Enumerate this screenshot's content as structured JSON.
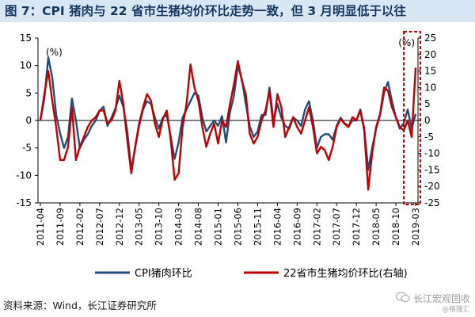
{
  "title": "图 7：CPI 猪肉与 22 省市生猪均价环比走势一致，但 3 月明显低于以往",
  "source": "资料来源：Wind，长江证券研究所",
  "watermark": {
    "line1": "长江宏观固收",
    "line2": "@格隆汇"
  },
  "colors": {
    "cpi": "#1f4e79",
    "hog": "#c00000",
    "highlight": "#c00000",
    "title_bg": "#d9e7f4",
    "title_text": "#17375e"
  },
  "chart_data": {
    "type": "line",
    "x": [
      "2011-04",
      "2011-05",
      "2011-06",
      "2011-07",
      "2011-08",
      "2011-09",
      "2011-10",
      "2011-11",
      "2011-12",
      "2012-01",
      "2012-02",
      "2012-03",
      "2012-04",
      "2012-05",
      "2012-06",
      "2012-07",
      "2012-08",
      "2012-09",
      "2012-10",
      "2012-11",
      "2012-12",
      "2013-01",
      "2013-02",
      "2013-03",
      "2013-04",
      "2013-05",
      "2013-06",
      "2013-07",
      "2013-08",
      "2013-09",
      "2013-10",
      "2013-11",
      "2013-12",
      "2014-01",
      "2014-02",
      "2014-03",
      "2014-04",
      "2014-05",
      "2014-06",
      "2014-07",
      "2014-08",
      "2014-09",
      "2014-10",
      "2014-11",
      "2014-12",
      "2015-01",
      "2015-02",
      "2015-03",
      "2015-04",
      "2015-05",
      "2015-06",
      "2015-07",
      "2015-08",
      "2015-09",
      "2015-10",
      "2015-11",
      "2015-12",
      "2016-01",
      "2016-02",
      "2016-03",
      "2016-04",
      "2016-05",
      "2016-06",
      "2016-07",
      "2016-08",
      "2016-09",
      "2016-10",
      "2016-11",
      "2016-12",
      "2017-01",
      "2017-02",
      "2017-03",
      "2017-04",
      "2017-05",
      "2017-06",
      "2017-07",
      "2017-08",
      "2017-09",
      "2017-10",
      "2017-11",
      "2017-12",
      "2018-01",
      "2018-02",
      "2018-03",
      "2018-04",
      "2018-05",
      "2018-06",
      "2018-07",
      "2018-08",
      "2018-09",
      "2018-10",
      "2018-11",
      "2018-12",
      "2019-01",
      "2019-02",
      "2019-03"
    ],
    "x_tick_labels": [
      "2011-04",
      "2011-09",
      "2012-02",
      "2012-07",
      "2012-12",
      "2013-05",
      "2013-10",
      "2014-03",
      "2014-08",
      "2015-01",
      "2015-06",
      "2015-11",
      "2016-04",
      "2016-09",
      "2017-02",
      "2017-07",
      "2017-12",
      "2018-05",
      "2018-10",
      "2019-03"
    ],
    "series": [
      {
        "name": "CPI猪肉环比",
        "axis": "left",
        "values": [
          0.0,
          4.0,
          11.5,
          7.8,
          1.0,
          -2.3,
          -5.0,
          -3.0,
          4.0,
          0.0,
          -5.0,
          -3.5,
          -2.5,
          -1.0,
          0.0,
          1.8,
          2.5,
          -1.0,
          0.5,
          2.2,
          4.5,
          2.5,
          -2.0,
          -9.0,
          -5.0,
          -1.0,
          2.0,
          3.5,
          3.0,
          0.5,
          -1.5,
          0.5,
          1.0,
          -3.0,
          -7.0,
          -4.0,
          0.5,
          2.0,
          3.5,
          5.0,
          4.5,
          0.5,
          -2.0,
          -1.0,
          0.0,
          -1.0,
          0.8,
          -4.0,
          1.5,
          4.5,
          10.0,
          7.5,
          3.0,
          -1.0,
          -3.0,
          -2.0,
          1.0,
          1.0,
          6.0,
          0.0,
          3.0,
          0.5,
          -1.0,
          -1.5,
          0.5,
          0.0,
          -1.0,
          2.0,
          3.5,
          0.0,
          -5.0,
          -3.0,
          -2.5,
          -2.5,
          -3.5,
          -1.0,
          0.5,
          -0.5,
          -1.0,
          0.0,
          0.0,
          2.0,
          -1.5,
          -9.0,
          -5.0,
          -1.5,
          1.0,
          5.0,
          7.0,
          3.5,
          0.5,
          -1.5,
          -0.5,
          2.0,
          -1.5,
          1.2
        ]
      },
      {
        "name": "22省市生猪均价环比(右轴)",
        "axis": "right",
        "values": [
          0.0,
          8.0,
          15.0,
          6.0,
          -2.0,
          -12.0,
          -12.0,
          -8.0,
          4.0,
          -12.0,
          -8.0,
          -5.0,
          -2.0,
          0.0,
          1.0,
          3.0,
          3.0,
          -1.0,
          0.0,
          3.0,
          12.0,
          5.0,
          -6.0,
          -16.0,
          -8.0,
          -1.0,
          4.0,
          8.0,
          6.0,
          -1.0,
          -5.0,
          0.5,
          3.0,
          -6.0,
          -18.0,
          -16.0,
          -2.0,
          5.0,
          17.0,
          10.0,
          6.0,
          -2.0,
          -8.0,
          -4.0,
          -1.0,
          -7.0,
          0.0,
          -2.0,
          5.0,
          11.0,
          18.0,
          12.0,
          8.0,
          -4.0,
          -7.0,
          -5.0,
          0.0,
          3.0,
          9.0,
          -2.0,
          8.0,
          4.0,
          -5.0,
          -2.0,
          1.0,
          -2.0,
          -4.0,
          0.0,
          4.0,
          -2.0,
          -10.0,
          -8.0,
          -9.0,
          -12.0,
          -8.0,
          -2.0,
          0.5,
          -1.0,
          -2.0,
          1.0,
          0.0,
          3.0,
          -3.0,
          -21.0,
          -10.0,
          -2.0,
          2.0,
          10.0,
          9.0,
          4.0,
          1.0,
          -2.0,
          -3.0,
          0.0,
          -5.0,
          16.0
        ]
      }
    ],
    "y_left": {
      "label": "(%)",
      "ylim": [
        -15,
        15
      ],
      "ticks": [
        -15,
        -10,
        -5,
        0,
        5,
        10,
        15
      ]
    },
    "y_right": {
      "label": "(%)",
      "ylim": [
        -25,
        25
      ],
      "ticks": [
        -25,
        -20,
        -15,
        -10,
        -5,
        0,
        5,
        10,
        15,
        20,
        25
      ]
    },
    "annotations": [
      {
        "type": "dashed-box",
        "color": "#c00000",
        "x_from": "2019-01",
        "x_to": "2019-03"
      }
    ],
    "legend_position": "bottom",
    "grid": false
  }
}
